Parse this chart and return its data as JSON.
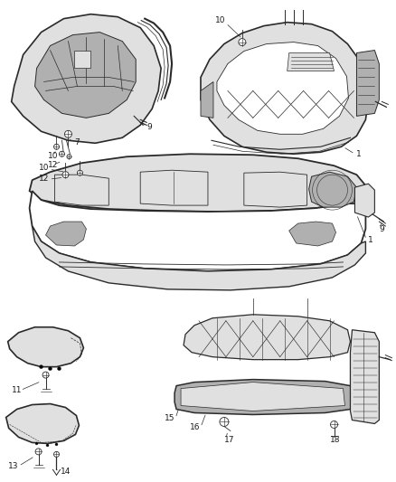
{
  "background_color": "#ffffff",
  "line_color": "#2a2a2a",
  "label_color": "#1a1a1a",
  "fig_width": 4.38,
  "fig_height": 5.33,
  "dpi": 100,
  "gray_fill": "#c8c8c8",
  "light_gray": "#e0e0e0",
  "mid_gray": "#b0b0b0"
}
